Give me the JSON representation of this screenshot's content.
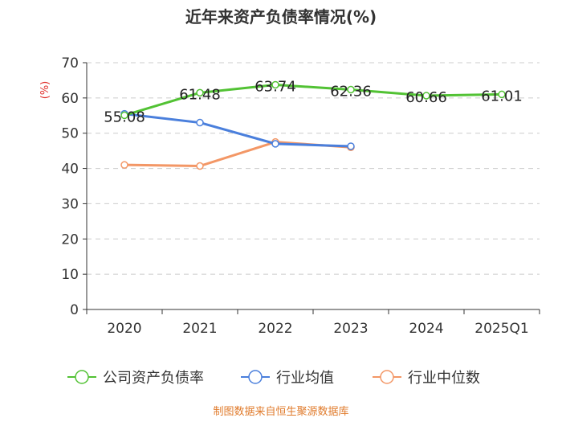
{
  "chart_data": {
    "type": "line",
    "title": "近年来资产负债率情况(%)",
    "ylabel": "(%)",
    "xlabel": "",
    "categories": [
      "2020",
      "2021",
      "2022",
      "2023",
      "2024",
      "2025Q1"
    ],
    "ylim": [
      0,
      70
    ],
    "yticks": [
      0,
      10,
      20,
      30,
      40,
      50,
      60,
      70
    ],
    "grid": true,
    "legend_position": "bottom",
    "series": [
      {
        "name": "公司资产负债率",
        "color": "#52c234",
        "values": [
          55.08,
          61.48,
          63.74,
          62.36,
          60.66,
          61.01
        ],
        "labels": [
          "55.08",
          "61.48",
          "63.74",
          "62.36",
          "60.66",
          "61.01"
        ]
      },
      {
        "name": "行业均值",
        "color": "#4a7fdc",
        "values": [
          55.5,
          53.0,
          47.0,
          46.3,
          null,
          null
        ]
      },
      {
        "name": "行业中位数",
        "color": "#f39766",
        "values": [
          41.0,
          40.7,
          47.5,
          46.0,
          null,
          null
        ]
      }
    ]
  },
  "source": "制图数据来自恒生聚源数据库",
  "colors": {
    "axis": "#333333",
    "grid": "#cccccc",
    "ylabel": "#e0302c",
    "source": "#e07b2c"
  }
}
